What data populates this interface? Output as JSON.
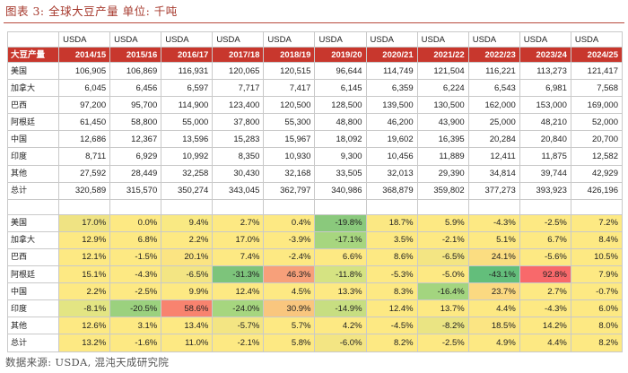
{
  "title": "图表 3: 全球大豆产量 单位: 千吨",
  "source": "数据来源: USDA, 混沌天成研究院",
  "source_label": "USDA",
  "corner_label": "大豆产量",
  "years": [
    "2014/15",
    "2015/16",
    "2016/17",
    "2017/18",
    "2018/19",
    "2019/20",
    "2020/21",
    "2021/22",
    "2022/23",
    "2023/24",
    "2024/25"
  ],
  "production": [
    {
      "label": "美国",
      "values": [
        "106,905",
        "106,869",
        "116,931",
        "120,065",
        "120,515",
        "96,644",
        "114,749",
        "121,504",
        "116,221",
        "113,273",
        "121,417"
      ]
    },
    {
      "label": "加拿大",
      "values": [
        "6,045",
        "6,456",
        "6,597",
        "7,717",
        "7,417",
        "6,145",
        "6,359",
        "6,224",
        "6,543",
        "6,981",
        "7,568"
      ]
    },
    {
      "label": "巴西",
      "values": [
        "97,200",
        "95,700",
        "114,900",
        "123,400",
        "120,500",
        "128,500",
        "139,500",
        "130,500",
        "162,000",
        "153,000",
        "169,000"
      ]
    },
    {
      "label": "阿根廷",
      "values": [
        "61,450",
        "58,800",
        "55,000",
        "37,800",
        "55,300",
        "48,800",
        "46,200",
        "43,900",
        "25,000",
        "48,210",
        "52,000"
      ]
    },
    {
      "label": "中国",
      "values": [
        "12,686",
        "12,367",
        "13,596",
        "15,283",
        "15,967",
        "18,092",
        "19,602",
        "16,395",
        "20,284",
        "20,840",
        "20,700"
      ]
    },
    {
      "label": "印度",
      "values": [
        "8,711",
        "6,929",
        "10,992",
        "8,350",
        "10,930",
        "9,300",
        "10,456",
        "11,889",
        "12,411",
        "11,875",
        "12,582"
      ]
    },
    {
      "label": "其他",
      "values": [
        "27,592",
        "28,449",
        "32,258",
        "30,430",
        "32,168",
        "33,505",
        "32,013",
        "29,390",
        "34,814",
        "39,744",
        "42,929"
      ]
    },
    {
      "label": "总计",
      "values": [
        "320,589",
        "315,570",
        "350,274",
        "343,045",
        "362,797",
        "340,986",
        "368,879",
        "359,802",
        "377,273",
        "393,923",
        "426,196"
      ]
    }
  ],
  "growth": [
    {
      "label": "美国",
      "values": [
        "17.0%",
        "0.0%",
        "9.4%",
        "2.7%",
        "0.4%",
        "-19.8%",
        "18.7%",
        "5.9%",
        "-4.3%",
        "-2.5%",
        "7.2%"
      ],
      "colors": [
        "#efe383",
        "#fde983",
        "#f9e983",
        "#fde983",
        "#fde983",
        "#8ac97c",
        "#fbe883",
        "#fde983",
        "#fde983",
        "#fde983",
        "#fde983"
      ]
    },
    {
      "label": "加拿大",
      "values": [
        "12.9%",
        "6.8%",
        "2.2%",
        "17.0%",
        "-3.9%",
        "-17.1%",
        "3.5%",
        "-2.1%",
        "5.1%",
        "6.7%",
        "8.4%"
      ],
      "colors": [
        "#fde983",
        "#fde983",
        "#fde983",
        "#fde983",
        "#fde983",
        "#a7d67f",
        "#fde983",
        "#fde983",
        "#fde983",
        "#fde983",
        "#fde983"
      ]
    },
    {
      "label": "巴西",
      "values": [
        "12.1%",
        "-1.5%",
        "20.1%",
        "7.4%",
        "-2.4%",
        "6.6%",
        "8.6%",
        "-6.5%",
        "24.1%",
        "-5.6%",
        "10.5%"
      ],
      "colors": [
        "#fde983",
        "#fde983",
        "#fbe482",
        "#fde983",
        "#fde983",
        "#fde983",
        "#fde983",
        "#f3e583",
        "#fbdd81",
        "#fde983",
        "#fde983"
      ]
    },
    {
      "label": "阿根廷",
      "values": [
        "15.1%",
        "-4.3%",
        "-6.5%",
        "-31.3%",
        "46.3%",
        "-11.8%",
        "-5.3%",
        "-5.0%",
        "-43.1%",
        "92.8%",
        "7.9%"
      ],
      "colors": [
        "#fde983",
        "#fde983",
        "#f3e583",
        "#7dc47b",
        "#f7a07a",
        "#d5e382",
        "#fde983",
        "#fde983",
        "#63be7b",
        "#f8696b",
        "#fde983"
      ]
    },
    {
      "label": "中国",
      "values": [
        "2.2%",
        "-2.5%",
        "9.9%",
        "12.4%",
        "4.5%",
        "13.3%",
        "8.3%",
        "-16.4%",
        "23.7%",
        "2.7%",
        "-0.7%"
      ],
      "colors": [
        "#fde983",
        "#fde983",
        "#fde983",
        "#fde983",
        "#fde983",
        "#fde983",
        "#fde983",
        "#a3d57f",
        "#fbd981",
        "#fde983",
        "#fde983"
      ]
    },
    {
      "label": "印度",
      "values": [
        "-8.1%",
        "-20.5%",
        "58.6%",
        "-24.0%",
        "30.9%",
        "-14.9%",
        "12.4%",
        "13.7%",
        "4.4%",
        "-4.3%",
        "6.0%"
      ],
      "colors": [
        "#e3e583",
        "#9bd17e",
        "#f8836f",
        "#a6d67f",
        "#f9c67e",
        "#c7de81",
        "#fde983",
        "#fde983",
        "#fde983",
        "#fde983",
        "#fde983"
      ]
    },
    {
      "label": "其他",
      "values": [
        "12.6%",
        "3.1%",
        "13.4%",
        "-5.7%",
        "5.7%",
        "4.2%",
        "-4.5%",
        "-8.2%",
        "18.5%",
        "14.2%",
        "8.0%"
      ],
      "colors": [
        "#fde983",
        "#fde983",
        "#fde983",
        "#f3e583",
        "#fde983",
        "#fde983",
        "#fde983",
        "#eae483",
        "#fbe583",
        "#fde983",
        "#fde983"
      ]
    },
    {
      "label": "总计",
      "values": [
        "13.2%",
        "-1.6%",
        "11.0%",
        "-2.1%",
        "5.8%",
        "-6.0%",
        "8.2%",
        "-2.5%",
        "4.9%",
        "4.4%",
        "8.2%"
      ],
      "colors": [
        "#fde983",
        "#fde983",
        "#fde983",
        "#fde983",
        "#fde983",
        "#f3e583",
        "#fde983",
        "#fde983",
        "#fde983",
        "#fde983",
        "#fde983"
      ]
    }
  ]
}
